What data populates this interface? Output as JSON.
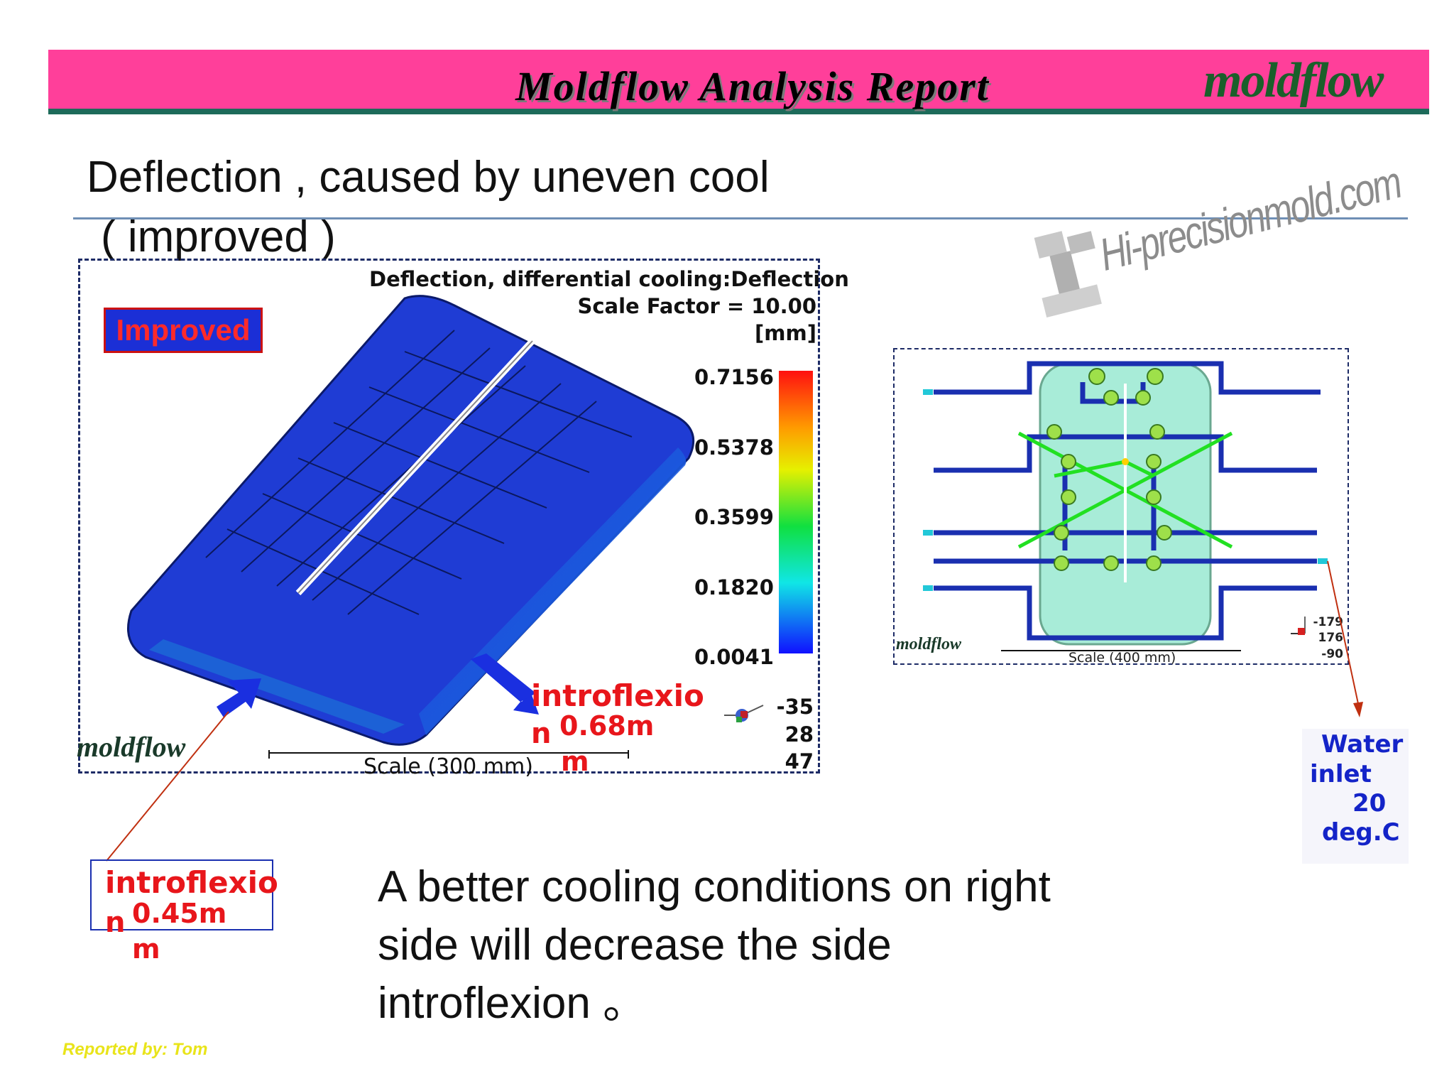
{
  "header": {
    "report_title": "Moldflow Analysis Report",
    "brand_logo": "moldflow",
    "banner_color": "#ff3f9a",
    "rule_color": "#1d6b5a"
  },
  "slide": {
    "title_line1": "Deflection , caused by uneven cool",
    "title_line2": "(   improved   )"
  },
  "watermark": {
    "text": "Hi-precisionmold.com",
    "icon": "mold-logo-icon"
  },
  "left_figure": {
    "result_title": "Deflection, differential cooling:Deflection",
    "scale_factor": "Scale Factor = 10.00",
    "unit": "[mm]",
    "improved_label": "Improved",
    "legend_ticks": [
      "0.7156",
      "0.5378",
      "0.3599",
      "0.1820",
      "0.0041"
    ],
    "view_angles": [
      "-35",
      "28",
      "47"
    ],
    "scale_bar": "Scale (300 mm)",
    "logo": "moldflow",
    "annotation_right_line1": "introflexio",
    "annotation_right_line2a": "n",
    "annotation_right_line2b": "0.68m",
    "annotation_right_line3": "m"
  },
  "left_note": {
    "line1": "introflexio",
    "line2a": "n",
    "line2b": "0.45m",
    "line3": "m"
  },
  "right_figure": {
    "logo": "moldflow",
    "scale_bar": "Scale (400 mm)",
    "view_angles": [
      "-179",
      "176",
      "-90"
    ]
  },
  "water_inlet": {
    "line1": "Water",
    "line2": "inlet",
    "line3": "20",
    "line4": "deg.C"
  },
  "caption": {
    "line1": "A better cooling conditions on right",
    "line2": "side will decrease the side",
    "line3": "introflexion 。"
  },
  "footer": {
    "reporter": "Reported by: Tom"
  }
}
